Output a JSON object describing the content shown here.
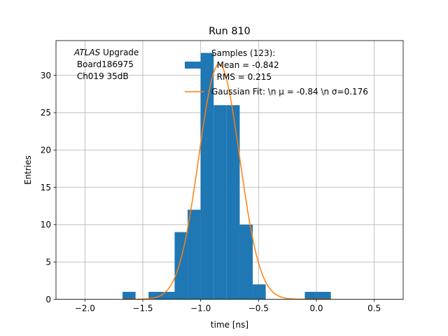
{
  "chart_data": {
    "type": "bar",
    "title": "Run 810",
    "xlabel": "time [ns]",
    "ylabel": "Entries",
    "xlim": [
      -2.25,
      0.75
    ],
    "ylim": [
      0,
      34.65
    ],
    "grid": true,
    "x_ticks": [
      -2.0,
      -1.5,
      -1.0,
      -0.5,
      0.0,
      0.5
    ],
    "x_tick_labels": [
      "−2.0",
      "−1.5",
      "−1.0",
      "−0.5",
      "0.0",
      "0.5"
    ],
    "y_ticks": [
      0,
      5,
      10,
      15,
      20,
      25,
      30
    ],
    "y_tick_labels": [
      "0",
      "5",
      "10",
      "15",
      "20",
      "25",
      "30"
    ],
    "histogram": {
      "name": "Samples (123):\n Mean = -0.842\n RMS = 0.215",
      "color": "#1f77b4",
      "bin_edges": [
        -1.675,
        -1.5625,
        -1.45,
        -1.3375,
        -1.225,
        -1.1125,
        -1.0,
        -0.8875,
        -0.775,
        -0.6625,
        -0.55,
        -0.4375,
        -0.325,
        -0.2125,
        -0.1,
        0.0125,
        0.125
      ],
      "counts": [
        1,
        0,
        1,
        1,
        9,
        12,
        33,
        26,
        26,
        10,
        2,
        0,
        0,
        0,
        1,
        1
      ]
    },
    "fit": {
      "name": "Gaussian Fit: \\n μ = -0.84 \\n σ=0.176",
      "color": "#ff7f0e",
      "mu": -0.84,
      "sigma": 0.176,
      "amplitude": 31.5,
      "x_range": [
        -1.675,
        0.125
      ]
    },
    "legend": {
      "location": "upper-right",
      "samples_lines": [
        "Samples (123):",
        "  Mean = -0.842",
        "  RMS = 0.215"
      ],
      "fit_text": "Gaussian Fit: \\n μ = -0.84 \\n σ=0.176"
    },
    "annotation": {
      "atlas": "ATLAS",
      "upgrade": " Upgrade",
      "board": " Board186975",
      "channel": " Ch019 35dB"
    }
  }
}
